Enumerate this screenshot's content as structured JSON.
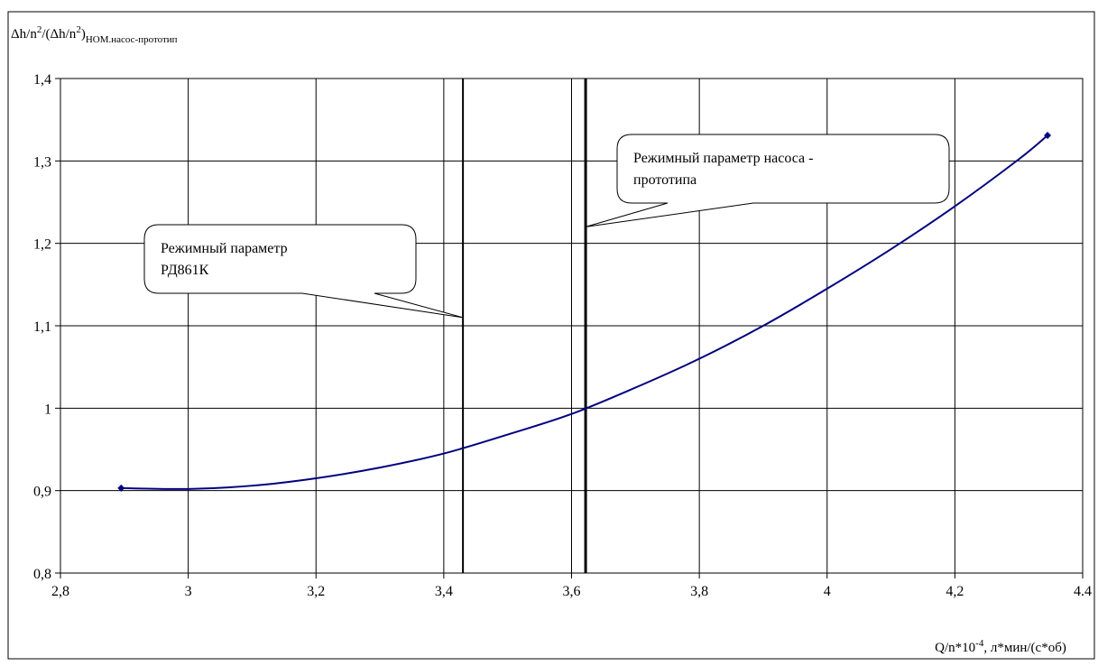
{
  "chart_data": {
    "type": "line",
    "ylabel": {
      "base": "Δh/n",
      "sup1": "2",
      "mid": "/(Δh/n",
      "sup2": "2",
      "close": ")",
      "sub": "НОМ.насос-прототип"
    },
    "xlabel": {
      "pre": "Q/n*10",
      "sup": "-4",
      "post": ", л*мин/(с*об)"
    },
    "xlim": [
      2.8,
      4.4
    ],
    "ylim": [
      0.8,
      1.4
    ],
    "x_ticks": [
      2.8,
      3.0,
      3.2,
      3.4,
      3.6,
      3.8,
      4.0,
      4.2,
      4.4
    ],
    "x_tick_labels": [
      "2,8",
      "3",
      "3,2",
      "3,4",
      "3,6",
      "3,8",
      "4",
      "4,2",
      "4.4"
    ],
    "y_ticks": [
      0.8,
      0.9,
      1.0,
      1.1,
      1.2,
      1.3,
      1.4
    ],
    "y_tick_labels": [
      "0,8",
      "0,9",
      "1",
      "1,1",
      "1,2",
      "1,3",
      "1,4"
    ],
    "grid": true,
    "series": [
      {
        "color": "#000080",
        "x": [
          2.895,
          3.0,
          3.1,
          3.2,
          3.3,
          3.4,
          3.5,
          3.6,
          3.7,
          3.8,
          3.9,
          4.0,
          4.1,
          4.2,
          4.3,
          4.345
        ],
        "y": [
          0.903,
          0.902,
          0.906,
          0.915,
          0.928,
          0.945,
          0.968,
          0.993,
          1.025,
          1.06,
          1.1,
          1.145,
          1.193,
          1.245,
          1.302,
          1.331
        ],
        "endpoint_markers": [
          {
            "x": 2.895,
            "y": 0.903
          },
          {
            "x": 4.345,
            "y": 1.331
          }
        ]
      }
    ],
    "vertical_lines": [
      {
        "x": 3.43,
        "width": "normal"
      },
      {
        "x": 3.622,
        "width": "bold"
      }
    ],
    "annotations": [
      {
        "lines": [
          "Режимный параметр",
          "РД861К"
        ],
        "points_to": {
          "x": 3.43,
          "y": 1.11
        }
      },
      {
        "lines": [
          "Режимный параметр насоса -",
          "прототипа"
        ],
        "points_to": {
          "x": 3.622,
          "y": 1.22
        }
      }
    ]
  }
}
